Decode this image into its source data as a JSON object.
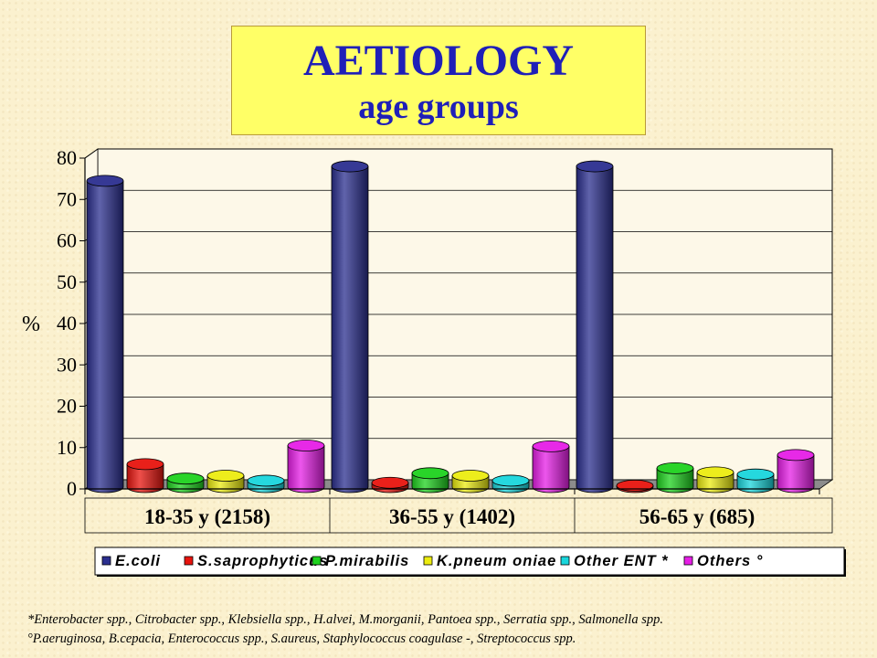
{
  "title": "AETIOLOGY",
  "subtitle": "age groups",
  "chart_data": {
    "type": "bar",
    "ylabel": "%",
    "ylim": [
      0,
      80
    ],
    "yticks": [
      0,
      10,
      20,
      30,
      40,
      50,
      60,
      70,
      80
    ],
    "grid": true,
    "legend_position": "bottom",
    "categories": [
      "18-35 y (2158)",
      "36-55 y (1402)",
      "56-65 y (685)"
    ],
    "series": [
      {
        "name": "E.coli",
        "color": "#2b2f8f",
        "values": [
          74.5,
          78.0,
          78.0
        ]
      },
      {
        "name": "S.saprophyticus",
        "color": "#e8140e",
        "values": [
          6.0,
          1.5,
          0.8
        ]
      },
      {
        "name": "P.mirabilis",
        "color": "#1ed21e",
        "values": [
          2.5,
          3.8,
          5.0
        ]
      },
      {
        "name": "K.pneum oniae",
        "color": "#ecec10",
        "values": [
          3.2,
          3.2,
          4.0
        ]
      },
      {
        "name": "Other ENT *",
        "color": "#19d6dc",
        "values": [
          2.0,
          2.0,
          3.5
        ]
      },
      {
        "name": "Others °",
        "color": "#e61ee6",
        "values": [
          10.5,
          10.3,
          8.2
        ]
      }
    ]
  },
  "footnotes": [
    "*Enterobacter spp., Citrobacter spp., Klebsiella spp., H.alvei, M.morganii, Pantoea spp., Serratia spp., Salmonella spp.",
    "°P.aeruginosa, B.cepacia, Enterococcus spp., S.aureus, Staphylococcus coagulase -, Streptococcus spp."
  ]
}
